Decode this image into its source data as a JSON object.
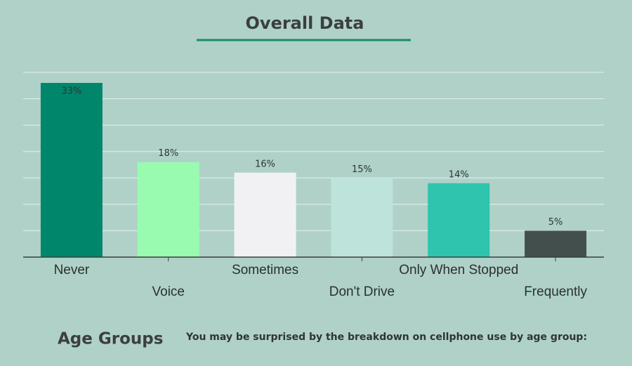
{
  "chart_data": {
    "type": "bar",
    "title": "Overall Data",
    "categories": [
      "Never",
      "Voice",
      "Sometimes",
      "Don't Drive",
      "Only When Stopped",
      "Frequently"
    ],
    "values": [
      33,
      18,
      16,
      15,
      14,
      5
    ],
    "value_labels": [
      "33%",
      "18%",
      "16%",
      "15%",
      "14%",
      "5%"
    ],
    "colors": [
      "#00866b",
      "#98fbb0",
      "#f1f1f3",
      "#bee3db",
      "#2ec4ae",
      "#434f4c"
    ],
    "ylim": [
      0,
      35
    ],
    "yticks": [
      0,
      5,
      10,
      15,
      20,
      25,
      30,
      35
    ],
    "grid": true
  },
  "footer": {
    "heading": "Age Groups",
    "text": "You may be surprised by the breakdown on cellphone use by age group:"
  }
}
